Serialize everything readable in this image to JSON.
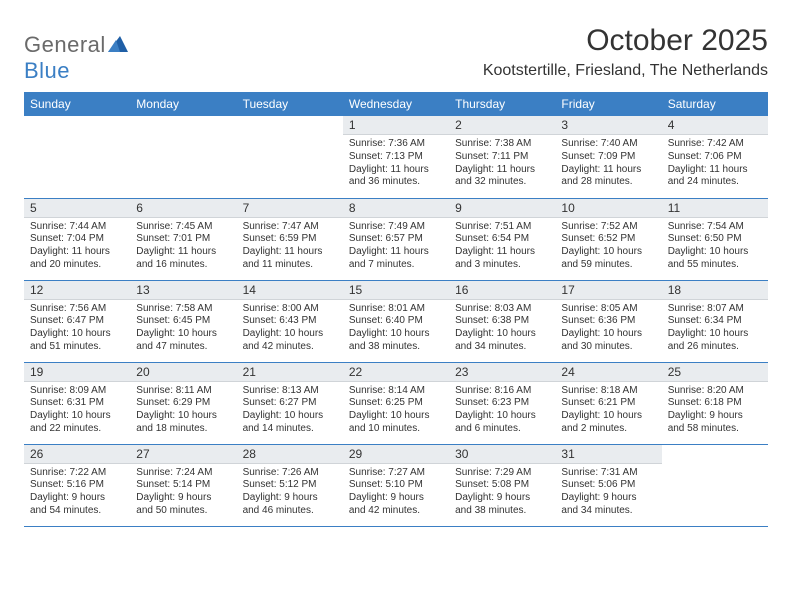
{
  "brand": {
    "name_a": "General",
    "name_b": "Blue"
  },
  "title": "October 2025",
  "location": "Kootstertille, Friesland, The Netherlands",
  "colors": {
    "accent": "#3b7fc4",
    "daynum_bg": "#e9ecef",
    "text": "#333333"
  },
  "weekdays": [
    "Sunday",
    "Monday",
    "Tuesday",
    "Wednesday",
    "Thursday",
    "Friday",
    "Saturday"
  ],
  "weeks": [
    [
      {
        "n": "",
        "sr": "",
        "ss": "",
        "dl": ""
      },
      {
        "n": "",
        "sr": "",
        "ss": "",
        "dl": ""
      },
      {
        "n": "",
        "sr": "",
        "ss": "",
        "dl": ""
      },
      {
        "n": "1",
        "sr": "Sunrise: 7:36 AM",
        "ss": "Sunset: 7:13 PM",
        "dl": "Daylight: 11 hours and 36 minutes."
      },
      {
        "n": "2",
        "sr": "Sunrise: 7:38 AM",
        "ss": "Sunset: 7:11 PM",
        "dl": "Daylight: 11 hours and 32 minutes."
      },
      {
        "n": "3",
        "sr": "Sunrise: 7:40 AM",
        "ss": "Sunset: 7:09 PM",
        "dl": "Daylight: 11 hours and 28 minutes."
      },
      {
        "n": "4",
        "sr": "Sunrise: 7:42 AM",
        "ss": "Sunset: 7:06 PM",
        "dl": "Daylight: 11 hours and 24 minutes."
      }
    ],
    [
      {
        "n": "5",
        "sr": "Sunrise: 7:44 AM",
        "ss": "Sunset: 7:04 PM",
        "dl": "Daylight: 11 hours and 20 minutes."
      },
      {
        "n": "6",
        "sr": "Sunrise: 7:45 AM",
        "ss": "Sunset: 7:01 PM",
        "dl": "Daylight: 11 hours and 16 minutes."
      },
      {
        "n": "7",
        "sr": "Sunrise: 7:47 AM",
        "ss": "Sunset: 6:59 PM",
        "dl": "Daylight: 11 hours and 11 minutes."
      },
      {
        "n": "8",
        "sr": "Sunrise: 7:49 AM",
        "ss": "Sunset: 6:57 PM",
        "dl": "Daylight: 11 hours and 7 minutes."
      },
      {
        "n": "9",
        "sr": "Sunrise: 7:51 AM",
        "ss": "Sunset: 6:54 PM",
        "dl": "Daylight: 11 hours and 3 minutes."
      },
      {
        "n": "10",
        "sr": "Sunrise: 7:52 AM",
        "ss": "Sunset: 6:52 PM",
        "dl": "Daylight: 10 hours and 59 minutes."
      },
      {
        "n": "11",
        "sr": "Sunrise: 7:54 AM",
        "ss": "Sunset: 6:50 PM",
        "dl": "Daylight: 10 hours and 55 minutes."
      }
    ],
    [
      {
        "n": "12",
        "sr": "Sunrise: 7:56 AM",
        "ss": "Sunset: 6:47 PM",
        "dl": "Daylight: 10 hours and 51 minutes."
      },
      {
        "n": "13",
        "sr": "Sunrise: 7:58 AM",
        "ss": "Sunset: 6:45 PM",
        "dl": "Daylight: 10 hours and 47 minutes."
      },
      {
        "n": "14",
        "sr": "Sunrise: 8:00 AM",
        "ss": "Sunset: 6:43 PM",
        "dl": "Daylight: 10 hours and 42 minutes."
      },
      {
        "n": "15",
        "sr": "Sunrise: 8:01 AM",
        "ss": "Sunset: 6:40 PM",
        "dl": "Daylight: 10 hours and 38 minutes."
      },
      {
        "n": "16",
        "sr": "Sunrise: 8:03 AM",
        "ss": "Sunset: 6:38 PM",
        "dl": "Daylight: 10 hours and 34 minutes."
      },
      {
        "n": "17",
        "sr": "Sunrise: 8:05 AM",
        "ss": "Sunset: 6:36 PM",
        "dl": "Daylight: 10 hours and 30 minutes."
      },
      {
        "n": "18",
        "sr": "Sunrise: 8:07 AM",
        "ss": "Sunset: 6:34 PM",
        "dl": "Daylight: 10 hours and 26 minutes."
      }
    ],
    [
      {
        "n": "19",
        "sr": "Sunrise: 8:09 AM",
        "ss": "Sunset: 6:31 PM",
        "dl": "Daylight: 10 hours and 22 minutes."
      },
      {
        "n": "20",
        "sr": "Sunrise: 8:11 AM",
        "ss": "Sunset: 6:29 PM",
        "dl": "Daylight: 10 hours and 18 minutes."
      },
      {
        "n": "21",
        "sr": "Sunrise: 8:13 AM",
        "ss": "Sunset: 6:27 PM",
        "dl": "Daylight: 10 hours and 14 minutes."
      },
      {
        "n": "22",
        "sr": "Sunrise: 8:14 AM",
        "ss": "Sunset: 6:25 PM",
        "dl": "Daylight: 10 hours and 10 minutes."
      },
      {
        "n": "23",
        "sr": "Sunrise: 8:16 AM",
        "ss": "Sunset: 6:23 PM",
        "dl": "Daylight: 10 hours and 6 minutes."
      },
      {
        "n": "24",
        "sr": "Sunrise: 8:18 AM",
        "ss": "Sunset: 6:21 PM",
        "dl": "Daylight: 10 hours and 2 minutes."
      },
      {
        "n": "25",
        "sr": "Sunrise: 8:20 AM",
        "ss": "Sunset: 6:18 PM",
        "dl": "Daylight: 9 hours and 58 minutes."
      }
    ],
    [
      {
        "n": "26",
        "sr": "Sunrise: 7:22 AM",
        "ss": "Sunset: 5:16 PM",
        "dl": "Daylight: 9 hours and 54 minutes."
      },
      {
        "n": "27",
        "sr": "Sunrise: 7:24 AM",
        "ss": "Sunset: 5:14 PM",
        "dl": "Daylight: 9 hours and 50 minutes."
      },
      {
        "n": "28",
        "sr": "Sunrise: 7:26 AM",
        "ss": "Sunset: 5:12 PM",
        "dl": "Daylight: 9 hours and 46 minutes."
      },
      {
        "n": "29",
        "sr": "Sunrise: 7:27 AM",
        "ss": "Sunset: 5:10 PM",
        "dl": "Daylight: 9 hours and 42 minutes."
      },
      {
        "n": "30",
        "sr": "Sunrise: 7:29 AM",
        "ss": "Sunset: 5:08 PM",
        "dl": "Daylight: 9 hours and 38 minutes."
      },
      {
        "n": "31",
        "sr": "Sunrise: 7:31 AM",
        "ss": "Sunset: 5:06 PM",
        "dl": "Daylight: 9 hours and 34 minutes."
      },
      {
        "n": "",
        "sr": "",
        "ss": "",
        "dl": ""
      }
    ]
  ]
}
